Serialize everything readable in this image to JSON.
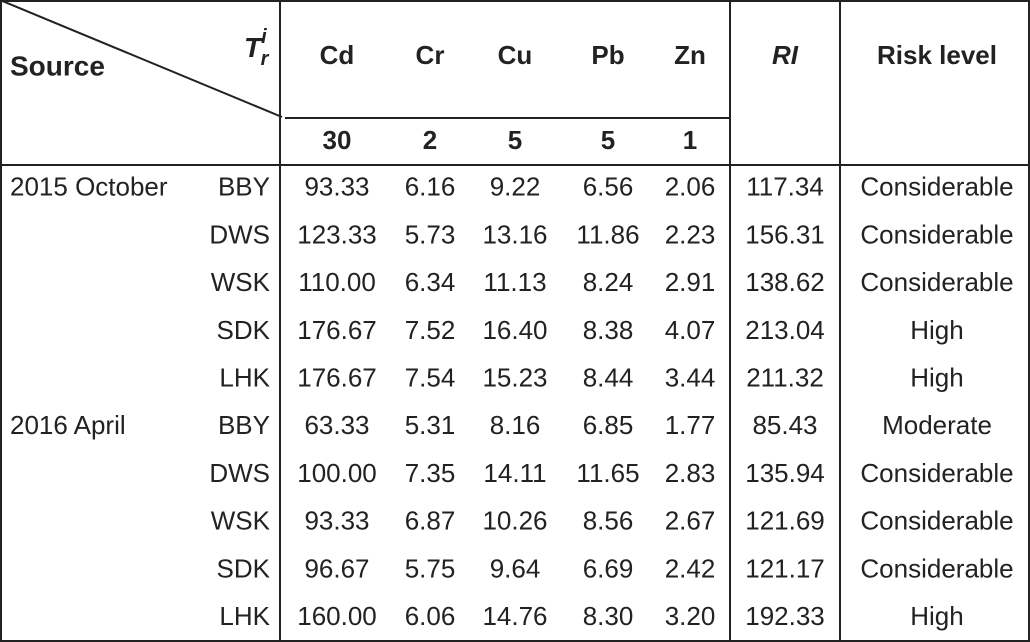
{
  "header": {
    "source": "Source",
    "tr": {
      "base": "T",
      "sup": "i",
      "sub": "r"
    },
    "metals": [
      "Cd",
      "Cr",
      "Cu",
      "Pb",
      "Zn"
    ],
    "toxic_factors": [
      "30",
      "2",
      "5",
      "5",
      "1"
    ],
    "ri": "RI",
    "risk_level": "Risk level"
  },
  "rows": [
    {
      "period": "2015 October",
      "site": "BBY",
      "values": [
        "93.33",
        "6.16",
        "9.22",
        "6.56",
        "2.06"
      ],
      "ri": "117.34",
      "risk": "Considerable"
    },
    {
      "site": "DWS",
      "values": [
        "123.33",
        "5.73",
        "13.16",
        "11.86",
        "2.23"
      ],
      "ri": "156.31",
      "risk": "Considerable"
    },
    {
      "site": "WSK",
      "values": [
        "110.00",
        "6.34",
        "11.13",
        "8.24",
        "2.91"
      ],
      "ri": "138.62",
      "risk": "Considerable"
    },
    {
      "site": "SDK",
      "values": [
        "176.67",
        "7.52",
        "16.40",
        "8.38",
        "4.07"
      ],
      "ri": "213.04",
      "risk": "High"
    },
    {
      "site": "LHK",
      "values": [
        "176.67",
        "7.54",
        "15.23",
        "8.44",
        "3.44"
      ],
      "ri": "211.32",
      "risk": "High"
    },
    {
      "period": "2016 April",
      "site": "BBY",
      "values": [
        "63.33",
        "5.31",
        "8.16",
        "6.85",
        "1.77"
      ],
      "ri": "85.43",
      "risk": "Moderate"
    },
    {
      "site": "DWS",
      "values": [
        "100.00",
        "7.35",
        "14.11",
        "11.65",
        "2.83"
      ],
      "ri": "135.94",
      "risk": "Considerable"
    },
    {
      "site": "WSK",
      "values": [
        "93.33",
        "6.87",
        "10.26",
        "8.56",
        "2.67"
      ],
      "ri": "121.69",
      "risk": "Considerable"
    },
    {
      "site": "SDK",
      "values": [
        "96.67",
        "5.75",
        "9.64",
        "6.69",
        "2.42"
      ],
      "ri": "121.17",
      "risk": "Considerable"
    },
    {
      "site": "LHK",
      "values": [
        "160.00",
        "6.06",
        "14.76",
        "8.30",
        "3.20"
      ],
      "ri": "192.33",
      "risk": "High"
    }
  ]
}
